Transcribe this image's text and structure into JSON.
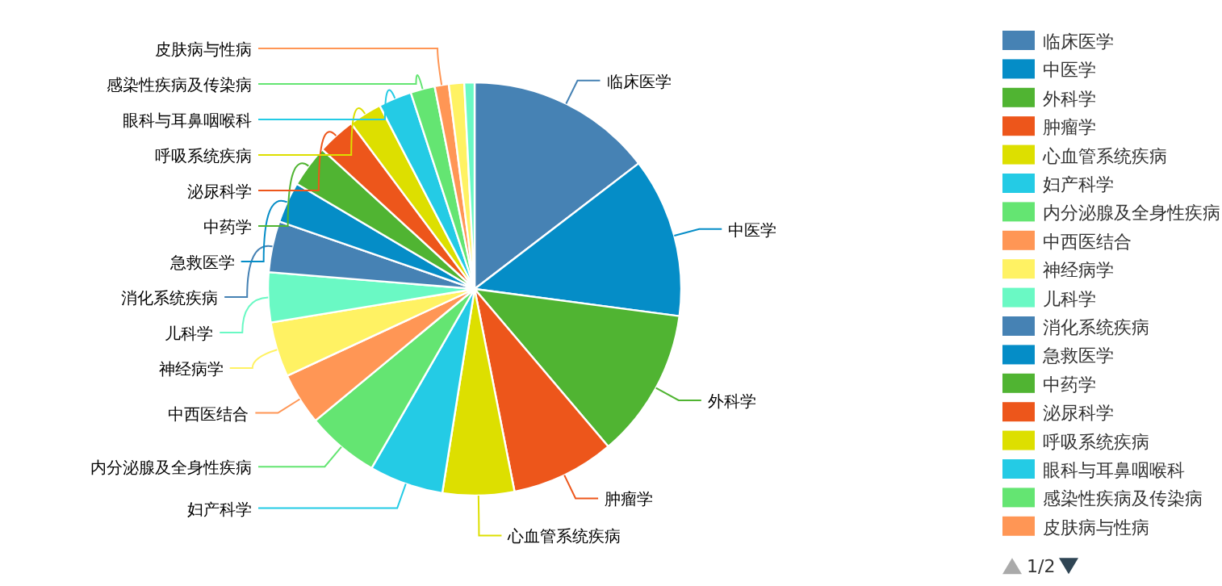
{
  "chart_data": {
    "type": "pie",
    "categories": [
      "临床医学",
      "中医学",
      "外科学",
      "肿瘤学",
      "心血管系统疾病",
      "妇产科学",
      "内分泌腺及全身性疾病",
      "中西医结合",
      "神经病学",
      "儿科学",
      "消化系统疾病",
      "急救医学",
      "中药学",
      "泌尿科学",
      "呼吸系统疾病",
      "眼科与耳鼻咽喉科",
      "感染性疾病及传染病",
      "皮肤病与性病",
      null,
      null
    ],
    "values": [
      14.6,
      12.5,
      11.7,
      8.1,
      5.6,
      5.8,
      5.7,
      4.1,
      4.3,
      3.9,
      4.0,
      3.2,
      3.3,
      3.0,
      2.6,
      2.6,
      1.9,
      1.1,
      1.2,
      0.8
    ],
    "colors": [
      "#4682b4",
      "#058dc7",
      "#50b432",
      "#ed561b",
      "#dddf00",
      "#24cbe5",
      "#64e572",
      "#ff9655",
      "#fff263",
      "#6af9c4",
      "#4682b4",
      "#058dc7",
      "#50b432",
      "#ed561b",
      "#dddf00",
      "#24cbe5",
      "#64e572",
      "#ff9655",
      "#fff263",
      "#6af9c4"
    ],
    "legend": "right",
    "annotations": [
      "1/2"
    ]
  }
}
